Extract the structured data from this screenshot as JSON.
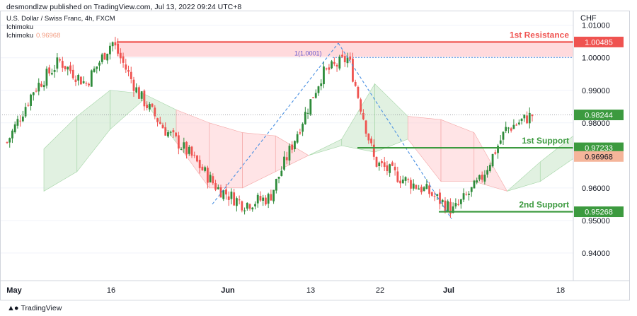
{
  "header": {
    "published": "desmondlzw published on TradingView.com, Jul 13, 2022 09:24 UTC+8",
    "symbol": "U.S. Dollar / Swiss Franc, 4h, FXCM",
    "indicator1": "Ichimoku",
    "indicator2": "Ichimoku",
    "indicator2_value": "0.96968"
  },
  "footer": {
    "logo_text": "TradingView"
  },
  "colors": {
    "up": "#26a69a",
    "up_body": "#2e8b3a",
    "down": "#ef5350",
    "resistance": "#ef5350",
    "support": "#3c9a3f",
    "cloud_bull": "#c8e6c9",
    "cloud_bear": "#ffcdd2",
    "fib": "#4a90e2",
    "ichimoku_badge": "#f5b59a"
  },
  "chart_data": {
    "type": "candlestick",
    "title": "",
    "currency": "CHF",
    "ylim": [
      0.9315,
      1.0145
    ],
    "y_ticks": [
      "1.01000",
      "1.00000",
      "0.99000",
      "0.98000",
      "0.96000",
      "0.95000",
      "0.94000"
    ],
    "x_ticks": [
      "May",
      "16",
      "Jun",
      "13",
      "22",
      "Jul",
      "18"
    ],
    "levels": [
      {
        "label": "1st Resistance",
        "value": 1.00485,
        "badge": "1.00485",
        "type": "resistance"
      },
      {
        "label": "1st Support",
        "value": 0.97233,
        "badge": "0.97233",
        "type": "support"
      },
      {
        "label": "2nd Support",
        "value": 0.95268,
        "badge": "0.95268",
        "type": "support"
      }
    ],
    "last_price": {
      "value": 0.98244,
      "badge": "0.98244"
    },
    "ichimoku_value": {
      "value": 0.96968,
      "badge": "0.96968"
    },
    "fib_label": "1(1.0001)",
    "fib_level": 1.0001,
    "resistance_zone": [
      1.0003,
      1.0052
    ],
    "price_path": [
      [
        0.974,
        0.974
      ],
      [
        0.99,
        0.9905
      ],
      [
        0.999,
        0.99
      ],
      [
        0.992,
        0.9985
      ],
      [
        1.005,
        1.001
      ],
      [
        0.989,
        0.992
      ],
      [
        0.978,
        0.972
      ],
      [
        0.97,
        0.965
      ],
      [
        0.96,
        0.957
      ],
      [
        0.955,
        0.96
      ],
      [
        0.957,
        0.965
      ],
      [
        0.976,
        0.988
      ],
      [
        0.995,
        1.004
      ],
      [
        1.0,
        0.995
      ],
      [
        0.968,
        0.962
      ],
      [
        0.963,
        0.964
      ],
      [
        0.959,
        0.954
      ],
      [
        0.953,
        0.957
      ],
      [
        0.962,
        0.969
      ],
      [
        0.978,
        0.984
      ],
      [
        0.9824,
        0.9824
      ]
    ],
    "cloud": [
      [
        0.972,
        0.959,
        "bull"
      ],
      [
        0.982,
        0.965,
        "bull"
      ],
      [
        0.99,
        0.978,
        "bull"
      ],
      [
        0.989,
        0.987,
        "bull"
      ],
      [
        0.984,
        0.974,
        "bear"
      ],
      [
        0.98,
        0.96,
        "bear"
      ],
      [
        0.977,
        0.96,
        "bear"
      ],
      [
        0.976,
        0.965,
        "bear"
      ],
      [
        0.97,
        0.97,
        "bull"
      ],
      [
        0.975,
        0.973,
        "bull"
      ],
      [
        0.992,
        0.971,
        "bull"
      ],
      [
        0.982,
        0.975,
        "bear"
      ],
      [
        0.981,
        0.962,
        "bear"
      ],
      [
        0.977,
        0.962,
        "bear"
      ],
      [
        0.959,
        0.959,
        "bull"
      ],
      [
        0.968,
        0.962,
        "bull"
      ],
      [
        0.976,
        0.969,
        "bull"
      ]
    ]
  }
}
